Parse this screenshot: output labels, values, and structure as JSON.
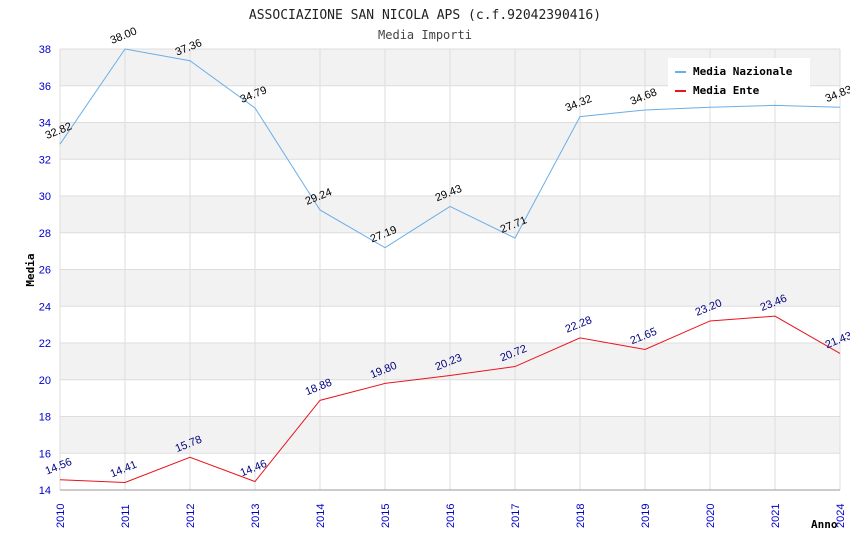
{
  "chart_data": {
    "type": "line",
    "title": "ASSOCIAZIONE SAN NICOLA APS (c.f.92042390416)",
    "subtitle": "Media Importi",
    "xlabel": "Anno",
    "ylabel": "Media",
    "x": [
      "2010",
      "2011",
      "2012",
      "2013",
      "2014",
      "2015",
      "2016",
      "2017",
      "2018",
      "2019",
      "2020",
      "2021",
      "2024"
    ],
    "ylim": [
      14,
      38
    ],
    "yticks": [
      14,
      16,
      18,
      20,
      22,
      24,
      26,
      28,
      30,
      32,
      34,
      36,
      38
    ],
    "grid": true,
    "legend_position": "top-right",
    "series": [
      {
        "name": "Media Nazionale",
        "color": "#6aaee8",
        "label_color": "#000000",
        "values": [
          32.82,
          38.0,
          37.36,
          34.79,
          29.24,
          27.19,
          29.43,
          27.71,
          34.32,
          34.68,
          34.83,
          34.93,
          34.83
        ],
        "labels": [
          "32.82",
          "38.00",
          "37.36",
          "34.79",
          "29.24",
          "27.19",
          "29.43",
          "27.71",
          "34.32",
          "34.68",
          "",
          "",
          "34.83"
        ]
      },
      {
        "name": "Media Ente",
        "color": "#e8141e",
        "label_color": "#000080",
        "values": [
          14.56,
          14.41,
          15.78,
          14.46,
          18.88,
          19.8,
          20.23,
          20.72,
          22.28,
          21.65,
          23.2,
          23.46,
          21.43
        ],
        "labels": [
          "14.56",
          "14.41",
          "15.78",
          "14.46",
          "18.88",
          "19.80",
          "20.23",
          "20.72",
          "22.28",
          "21.65",
          "23.20",
          "23.46",
          "21.43"
        ]
      }
    ]
  }
}
